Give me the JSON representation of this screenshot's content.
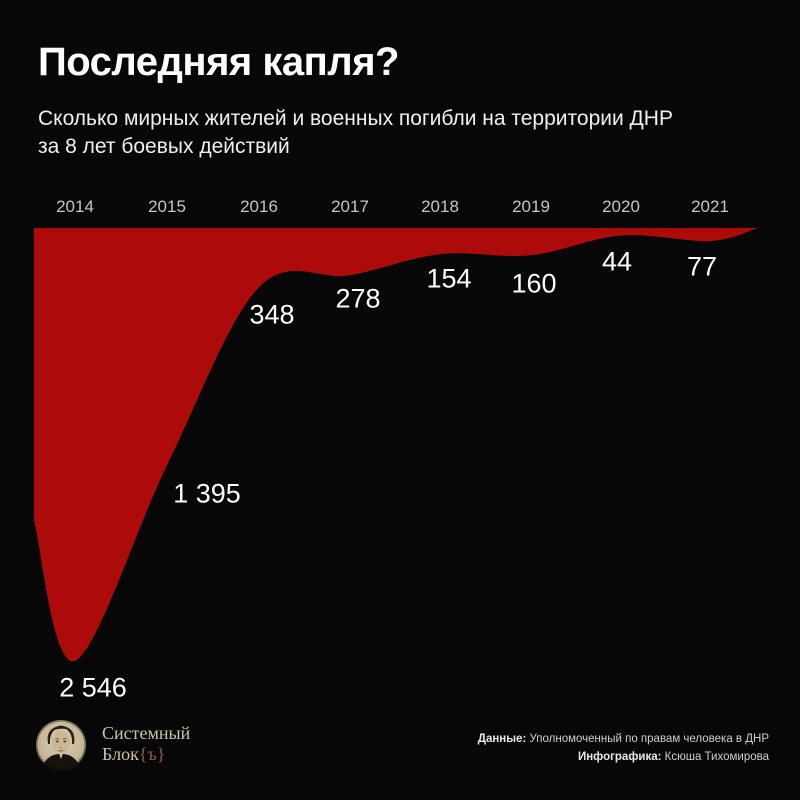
{
  "header": {
    "title": "Последняя капля?",
    "subtitle_line1": "Сколько мирных жителей и военных погибли на территории ДНР",
    "subtitle_line2": "за 8 лет боевых действий"
  },
  "chart_data": {
    "type": "area",
    "title": "Последняя капля?",
    "categories": [
      "2014",
      "2015",
      "2016",
      "2017",
      "2018",
      "2019",
      "2020",
      "2021"
    ],
    "values": [
      2546,
      1395,
      348,
      278,
      154,
      160,
      44,
      77
    ],
    "value_labels": [
      "2 546",
      "1 395",
      "348",
      "278",
      "154",
      "160",
      "44",
      "77"
    ],
    "ylim": [
      0,
      2546
    ],
    "orientation": "depth-below-top-baseline (drop shape)",
    "axis_position": "years along top",
    "grid": "off",
    "legend": "none"
  },
  "footer": {
    "logo": {
      "portrait_icon": "portrait-photo",
      "line1": "Системный",
      "line2_main": "Блок",
      "line2_suffix": "{ъ}"
    },
    "credits": [
      {
        "label": "Данные:",
        "text": " Уполномоченный по правам человека в ДНР"
      },
      {
        "label": "Инфографика:",
        "text": " Ксюша Тихомирова"
      }
    ]
  },
  "colors": {
    "background": "#070707",
    "area_red": "#ad0b09",
    "text_primary": "#ffffff",
    "text_muted": "#c6c6c6",
    "logo_cream": "#cdc2aa",
    "logo_accent": "#8a6048"
  }
}
